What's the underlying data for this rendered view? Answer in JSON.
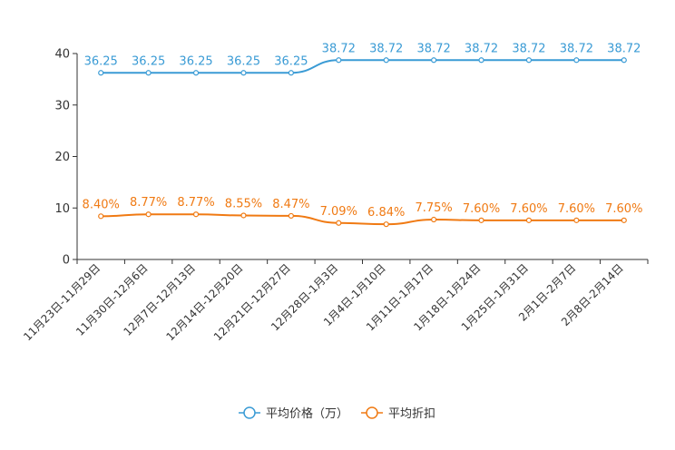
{
  "chart_data": {
    "type": "line",
    "categories": [
      "11月23日-11月29日",
      "11月30日-12月6日",
      "12月7日-12月13日",
      "12月14日-12月20日",
      "12月21日-12月27日",
      "12月28日-1月3日",
      "1月4日-1月10日",
      "1月11日-1月17日",
      "1月18日-1月24日",
      "1月25日-1月31日",
      "2月1日-2月7日",
      "2月8日-2月14日"
    ],
    "ylim": [
      0,
      40
    ],
    "yticks": [
      0,
      10,
      20,
      30,
      40
    ],
    "legend_position": "bottom-center",
    "series": [
      {
        "name": "平均价格（万）",
        "color": "#3a9bd5",
        "values": [
          36.25,
          36.25,
          36.25,
          36.25,
          36.25,
          38.72,
          38.72,
          38.72,
          38.72,
          38.72,
          38.72,
          38.72
        ],
        "labels": [
          "36.25",
          "36.25",
          "36.25",
          "36.25",
          "36.25",
          "38.72",
          "38.72",
          "38.72",
          "38.72",
          "38.72",
          "38.72",
          "38.72"
        ]
      },
      {
        "name": "平均折扣",
        "color": "#f07a13",
        "values": [
          8.4,
          8.77,
          8.77,
          8.55,
          8.47,
          7.09,
          6.84,
          7.75,
          7.6,
          7.6,
          7.6,
          7.6
        ],
        "labels": [
          "8.40%",
          "8.77%",
          "8.77%",
          "8.55%",
          "8.47%",
          "7.09%",
          "6.84%",
          "7.75%",
          "7.60%",
          "7.60%",
          "7.60%",
          "7.60%"
        ]
      }
    ]
  }
}
